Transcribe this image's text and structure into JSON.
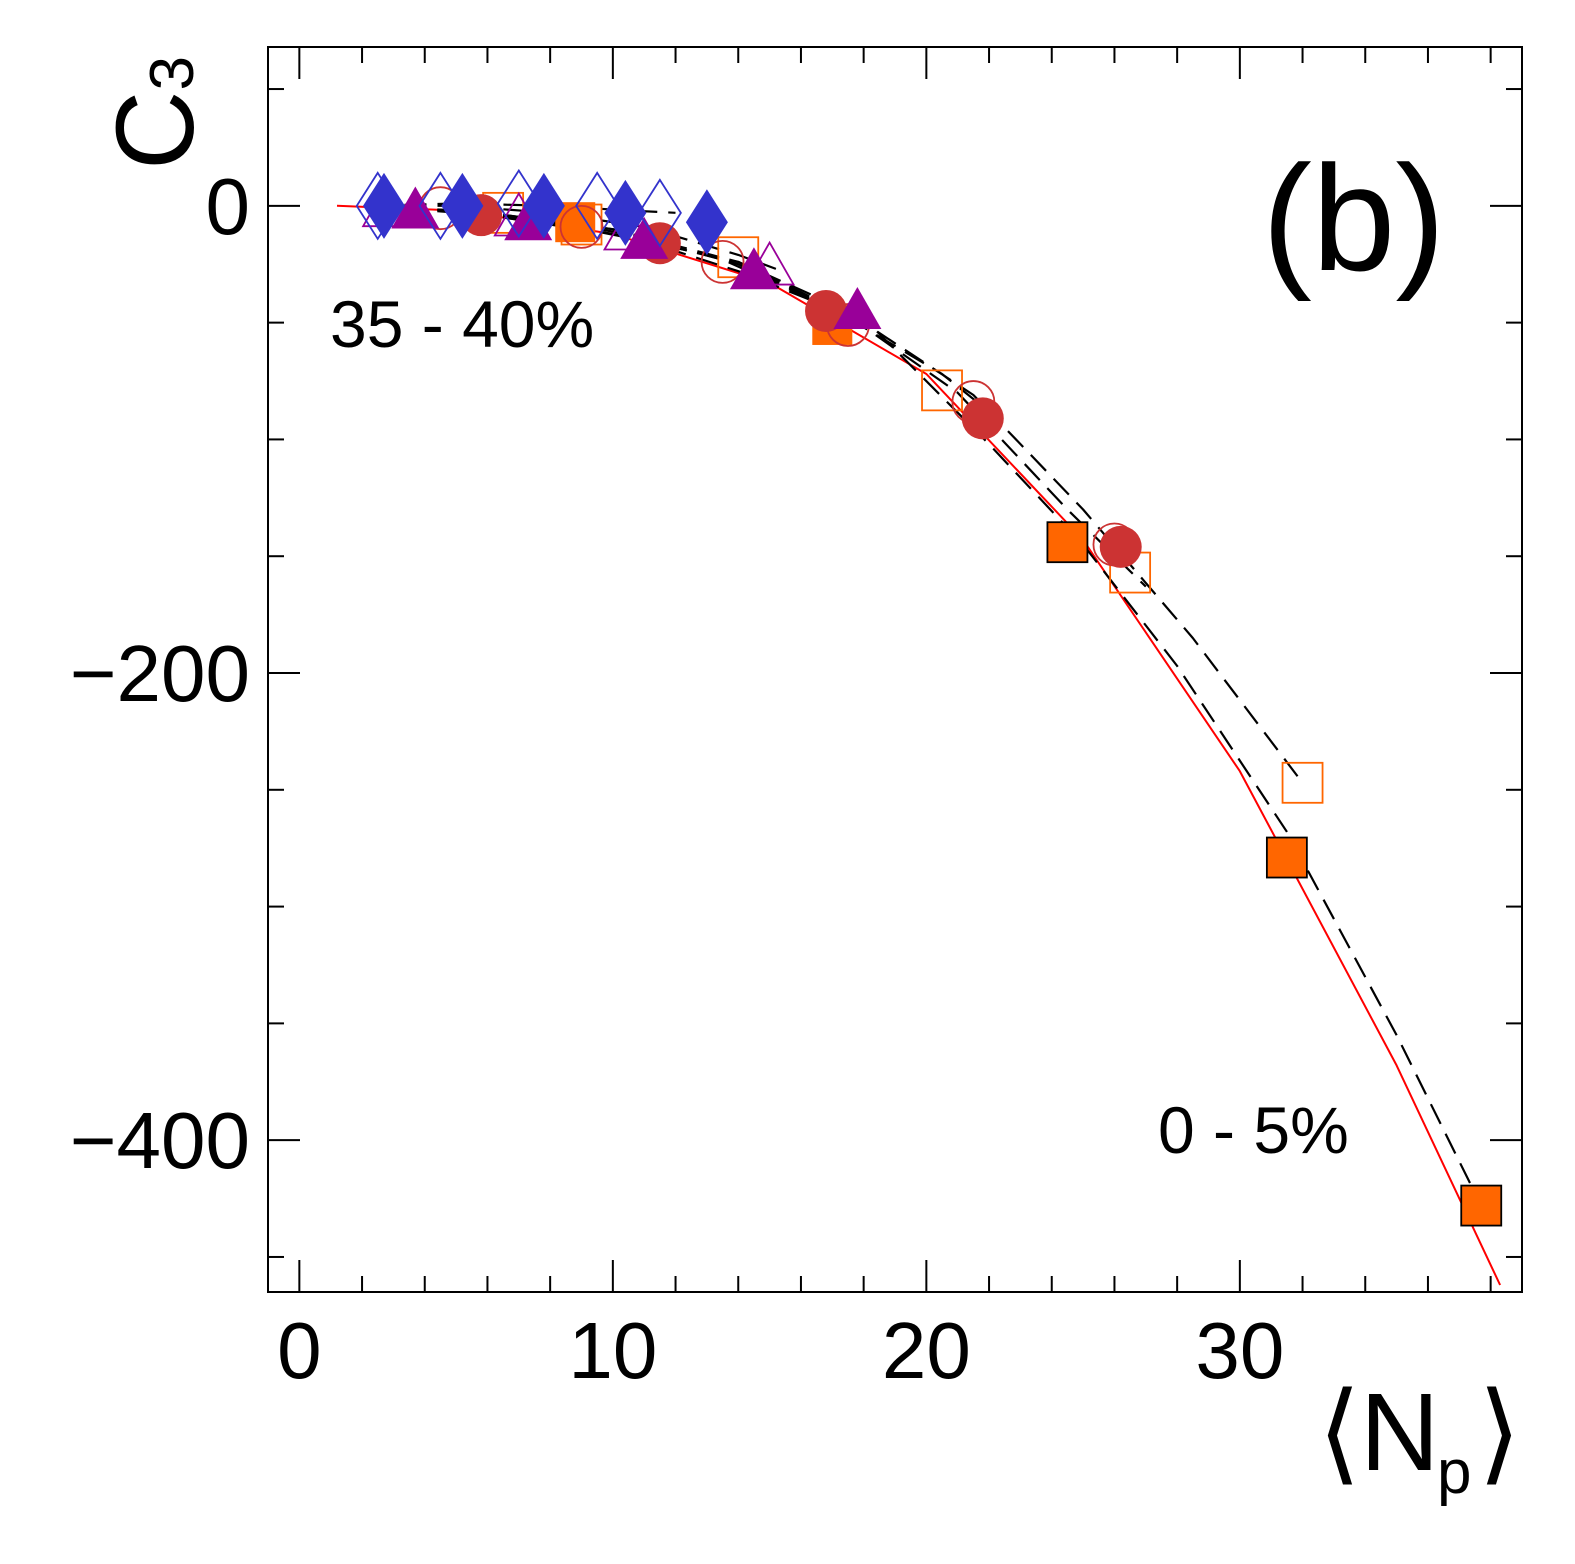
{
  "chart_data": {
    "type": "scatter",
    "panel_label": "(b)",
    "ylabel": {
      "main": "C",
      "sub": "3"
    },
    "xlabel": {
      "open": "⟨",
      "main": "N",
      "sub": "p",
      "close": "⟩"
    },
    "xlim": [
      -1,
      39
    ],
    "ylim": [
      -465,
      68
    ],
    "xticks": [
      0,
      10,
      20,
      30
    ],
    "xtick_labels": [
      "0",
      "10",
      "20",
      "30"
    ],
    "x_minor_step": 2,
    "yticks": [
      0,
      -200,
      -400
    ],
    "ytick_labels": [
      "0",
      "−200",
      "−400"
    ],
    "y_minor_step": 50,
    "annotations": [
      {
        "text": "35 - 40%",
        "x": 1.0,
        "y": -52
      },
      {
        "text": "0 - 5%",
        "x": 27.5,
        "y": -400
      }
    ],
    "colors": {
      "orange": "#ff6600",
      "red": "#cc3333",
      "purple": "#990099",
      "blue": "#3333cc",
      "black": "#000000",
      "fit_red": "#ff0000"
    },
    "series": [
      {
        "name": "orange-square-open",
        "marker": "square",
        "filled": false,
        "color": "#ff6600",
        "x": [
          6.5,
          9.0,
          14.0,
          20.5,
          26.5,
          32.0
        ],
        "y": [
          -3,
          -8,
          -22,
          -79,
          -157,
          -247
        ]
      },
      {
        "name": "orange-square-filled",
        "marker": "square",
        "filled": true,
        "color": "#ff6600",
        "x": [
          8.8,
          17.0,
          24.5,
          31.5,
          37.7
        ],
        "y": [
          -7,
          -51,
          -144,
          -279,
          -428
        ]
      },
      {
        "name": "black-square-open",
        "marker": "square",
        "filled": false,
        "color": "#000000",
        "x": [
          24.5,
          31.5,
          37.7
        ],
        "y": [
          -144,
          -279,
          -428
        ]
      },
      {
        "name": "red-circle-open",
        "marker": "circle",
        "filled": false,
        "color": "#cc3333",
        "x": [
          4.5,
          9.0,
          13.5,
          17.5,
          21.5,
          26.0
        ],
        "y": [
          -1,
          -9,
          -24,
          -51,
          -84,
          -145
        ]
      },
      {
        "name": "red-circle-filled",
        "marker": "circle",
        "filled": true,
        "color": "#cc3333",
        "x": [
          5.8,
          11.5,
          16.8,
          21.8,
          26.2
        ],
        "y": [
          -4,
          -16,
          -45,
          -91,
          -146
        ]
      },
      {
        "name": "purple-triangle-open",
        "marker": "triangle",
        "filled": false,
        "color": "#990099",
        "x": [
          2.8,
          7.0,
          10.5,
          15.0
        ],
        "y": [
          -1,
          -5,
          -11,
          -26
        ]
      },
      {
        "name": "purple-triangle-filled",
        "marker": "triangle",
        "filled": true,
        "color": "#990099",
        "x": [
          3.7,
          7.3,
          11.0,
          14.5,
          17.8
        ],
        "y": [
          -2,
          -7,
          -15,
          -28,
          -45
        ]
      },
      {
        "name": "blue-diamond-open",
        "marker": "diamond",
        "filled": false,
        "color": "#3333cc",
        "x": [
          2.5,
          4.5,
          7.0,
          9.5,
          11.5
        ],
        "y": [
          0,
          0,
          1,
          0,
          -3
        ]
      },
      {
        "name": "blue-diamond-filled",
        "marker": "diamond",
        "filled": true,
        "color": "#3333cc",
        "x": [
          2.7,
          5.2,
          7.8,
          10.4,
          13.0
        ],
        "y": [
          0,
          0,
          0,
          -3,
          -7
        ]
      }
    ],
    "fits": [
      {
        "name": "fit-red-solid",
        "style": "solid",
        "color": "#ff0000",
        "x": [
          1.2,
          5,
          10,
          15,
          20,
          25,
          30,
          35,
          38.3
        ],
        "y": [
          0,
          -2,
          -12,
          -33,
          -72,
          -143,
          -242,
          -368,
          -462
        ]
      },
      {
        "name": "fit-dashed-1",
        "style": "dashed",
        "color": "#000000",
        "x": [
          2.3,
          6,
          10,
          14,
          18,
          22,
          25,
          28,
          31.5,
          35,
          37.7
        ],
        "y": [
          0,
          -4,
          -12,
          -24,
          -48,
          -102,
          -145,
          -197,
          -268,
          -355,
          -428
        ]
      },
      {
        "name": "fit-dashed-2",
        "style": "dashed",
        "color": "#000000",
        "x": [
          2.3,
          6,
          10,
          14,
          18,
          21.5,
          25,
          28.5,
          32
        ],
        "y": [
          0,
          -3,
          -10,
          -24,
          -50,
          -81,
          -130,
          -185,
          -247
        ]
      },
      {
        "name": "fit-dashed-3",
        "style": "dashed",
        "color": "#000000",
        "x": [
          2.3,
          6,
          10,
          14,
          17.5,
          21,
          24.5,
          27
        ],
        "y": [
          0,
          -3,
          -10,
          -25,
          -47,
          -80,
          -130,
          -163
        ]
      },
      {
        "name": "fit-dashed-4",
        "style": "dashed",
        "color": "#000000",
        "x": [
          2.3,
          6,
          10,
          13.5,
          17,
          20.5,
          22
        ],
        "y": [
          0,
          -3,
          -11,
          -23,
          -44,
          -72,
          -88
        ]
      },
      {
        "name": "fit-dashed-5",
        "style": "dashed",
        "color": "#000000",
        "x": [
          2.3,
          5,
          8,
          11,
          14,
          17,
          18.2
        ],
        "y": [
          0,
          -2,
          -7,
          -15,
          -28,
          -44,
          -51
        ]
      },
      {
        "name": "fit-dashed-6",
        "style": "dashed",
        "color": "#000000",
        "x": [
          2.3,
          5,
          8,
          11,
          14,
          15.2
        ],
        "y": [
          0,
          0,
          -3,
          -9,
          -21,
          -27
        ]
      },
      {
        "name": "fit-dashed-7",
        "style": "dashed",
        "color": "#000000",
        "x": [
          2.3,
          5,
          8,
          10.5,
          12
        ],
        "y": [
          0,
          1,
          0,
          -2,
          -3
        ]
      }
    ]
  }
}
